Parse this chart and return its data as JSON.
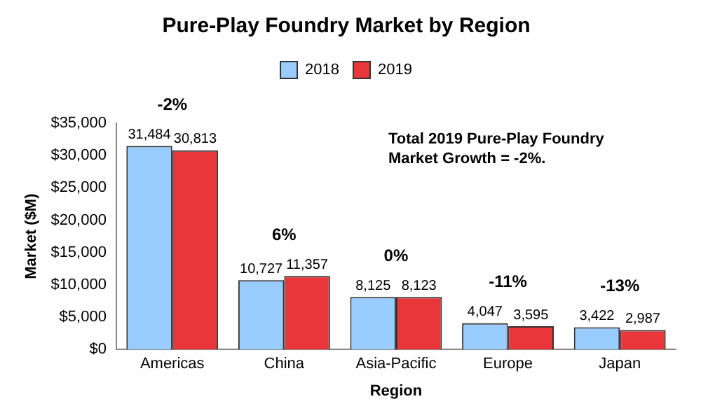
{
  "chart_data": {
    "type": "bar",
    "title": "Pure-Play Foundry Market by Region",
    "xlabel": "Region",
    "ylabel": "Market ($M)",
    "categories": [
      "Americas",
      "China",
      "Asia-Pacific",
      "Europe",
      "Japan"
    ],
    "series": [
      {
        "name": "2018",
        "color": "#99ccff",
        "values": [
          31484,
          10727,
          8125,
          4047,
          3422
        ],
        "value_labels": [
          "31,484",
          "10,727",
          "8,125",
          "4,047",
          "3,422"
        ]
      },
      {
        "name": "2019",
        "color": "#e8363a",
        "values": [
          30813,
          11357,
          8123,
          3595,
          2987
        ],
        "value_labels": [
          "30,813",
          "11,357",
          "8,123",
          "3,595",
          "2,987"
        ]
      }
    ],
    "ylim": [
      0,
      35000
    ],
    "yticks": [
      {
        "value": 0,
        "label": "$0"
      },
      {
        "value": 5000,
        "label": "$5,000"
      },
      {
        "value": 10000,
        "label": "$10,000"
      },
      {
        "value": 15000,
        "label": "$15,000"
      },
      {
        "value": 20000,
        "label": "$20,000"
      },
      {
        "value": 25000,
        "label": "$25,000"
      },
      {
        "value": 30000,
        "label": "$30,000"
      },
      {
        "value": 35000,
        "label": "$35,000"
      }
    ],
    "legend": "top",
    "annotations": [
      "-2%",
      "6%",
      "0%",
      "-11%",
      "-13%",
      "Total 2019 Pure-Play Foundry Market Growth = -2%."
    ]
  }
}
